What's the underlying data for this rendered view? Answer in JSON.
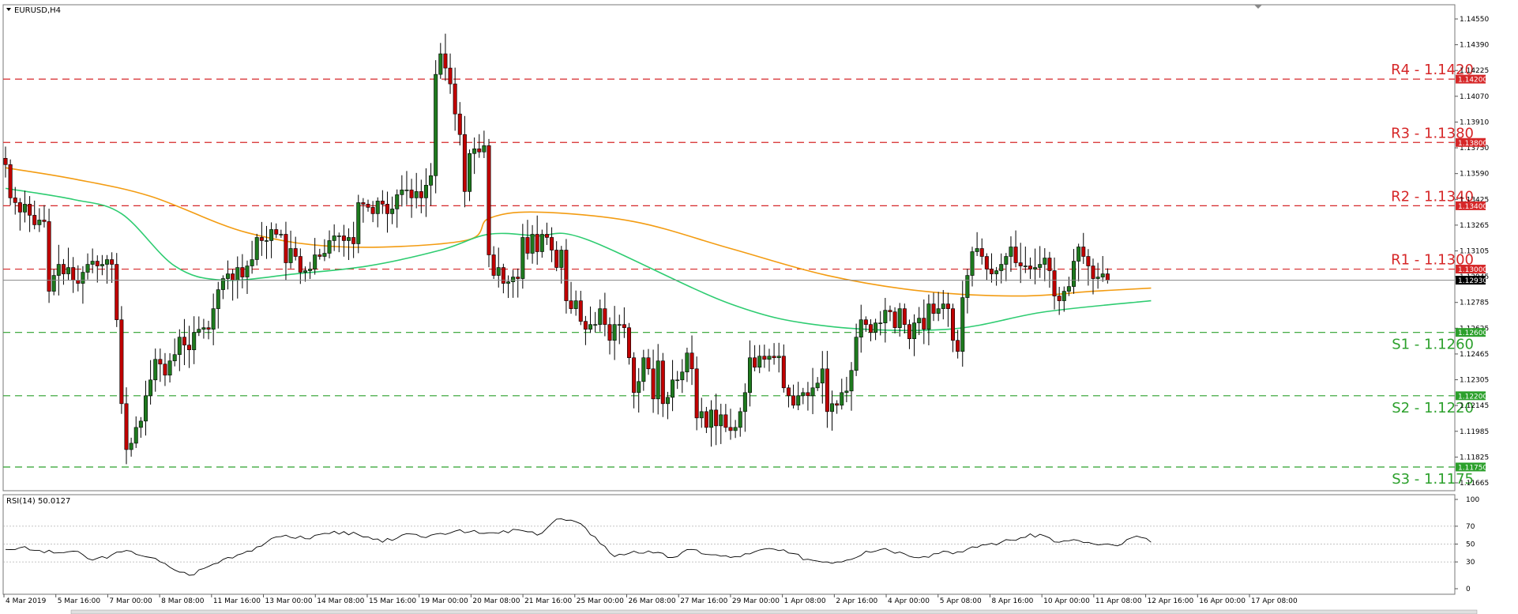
{
  "symbol_label": "EURUSD,H4",
  "rsi_label": "RSI(14) 50.0127",
  "colors": {
    "bull": "#1e7a1e",
    "bear": "#c00000",
    "ma_fast": "#f39c12",
    "ma_slow": "#2ecc71",
    "resistance": "#d62728",
    "support": "#2ca02c",
    "current": "#000000"
  },
  "chart_data": {
    "type": "candlestick",
    "y_ticks": [
      "1.14550",
      "1.14390",
      "1.14225",
      "1.14070",
      "1.13910",
      "1.13750",
      "1.13590",
      "1.13425",
      "1.13265",
      "1.13105",
      "1.12945",
      "1.12785",
      "1.12625",
      "1.12465",
      "1.12305",
      "1.12145",
      "1.11985",
      "1.11825",
      "1.11665"
    ],
    "ylim": [
      1.1165,
      1.1458
    ],
    "x_ticks": [
      "4 Mar 2019",
      "5 Mar 16:00",
      "7 Mar 00:00",
      "8 Mar 08:00",
      "11 Mar 16:00",
      "13 Mar 00:00",
      "14 Mar 08:00",
      "15 Mar 16:00",
      "19 Mar 00:00",
      "20 Mar 08:00",
      "21 Mar 16:00",
      "25 Mar 00:00",
      "26 Mar 08:00",
      "27 Mar 16:00",
      "29 Mar 00:00",
      "1 Apr 08:00",
      "2 Apr 16:00",
      "4 Apr 00:00",
      "5 Apr 08:00",
      "8 Apr 16:00",
      "10 Apr 00:00",
      "11 Apr 08:00",
      "12 Apr 16:00",
      "16 Apr 00:00",
      "17 Apr 08:00"
    ],
    "current_price": 1.1293,
    "current_price_label": "1.12930",
    "levels": [
      {
        "label": "R4 - 1.1420",
        "value": 1.142,
        "tag": "1.14200",
        "kind": "resistance"
      },
      {
        "label": "R3 - 1.1380",
        "value": 1.138,
        "tag": "1.13800",
        "kind": "resistance"
      },
      {
        "label": "R2 - 1.1340",
        "value": 1.134,
        "tag": "1.13400",
        "kind": "resistance"
      },
      {
        "label": "R1 - 1.1300",
        "value": 1.13,
        "tag": "1.13000",
        "kind": "resistance"
      },
      {
        "label": "S1 - 1.1260",
        "value": 1.126,
        "tag": "1.12600",
        "kind": "support"
      },
      {
        "label": "S2 - 1.1220",
        "value": 1.122,
        "tag": "1.12200",
        "kind": "support"
      },
      {
        "label": "S3 - 1.1175",
        "value": 1.1175,
        "tag": "1.11750",
        "kind": "support"
      }
    ],
    "close": [
      1.1366,
      1.1345,
      1.1342,
      1.1336,
      1.1341,
      1.1334,
      1.1328,
      1.1331,
      1.133,
      1.1286,
      1.1296,
      1.1303,
      1.1297,
      1.1301,
      1.1293,
      1.1291,
      1.1298,
      1.1303,
      1.1305,
      1.1302,
      1.1303,
      1.1306,
      1.1303,
      1.1268,
      1.1215,
      1.1186,
      1.119,
      1.12,
      1.1204,
      1.122,
      1.123,
      1.1243,
      1.124,
      1.1233,
      1.1242,
      1.1246,
      1.1257,
      1.1252,
      1.1249,
      1.126,
      1.1262,
      1.1263,
      1.1262,
      1.1275,
      1.1287,
      1.1294,
      1.1297,
      1.1293,
      1.1301,
      1.1295,
      1.1302,
      1.1306,
      1.132,
      1.1318,
      1.1318,
      1.1325,
      1.1322,
      1.1322,
      1.1304,
      1.1313,
      1.1308,
      1.1298,
      1.1299,
      1.13,
      1.1309,
      1.1308,
      1.131,
      1.1318,
      1.1321,
      1.1321,
      1.1318,
      1.132,
      1.1316,
      1.1342,
      1.1341,
      1.1339,
      1.1335,
      1.1343,
      1.1341,
      1.1335,
      1.1338,
      1.1347,
      1.135,
      1.135,
      1.1345,
      1.1349,
      1.1345,
      1.1353,
      1.1359,
      1.1423,
      1.1436,
      1.1427,
      1.1417,
      1.1398,
      1.1385,
      1.1349,
      1.1373,
      1.1376,
      1.1374,
      1.1378,
      1.1309,
      1.1296,
      1.1301,
      1.1291,
      1.1292,
      1.1295,
      1.1294,
      1.132,
      1.131,
      1.1322,
      1.1311,
      1.1322,
      1.132,
      1.1312,
      1.1301,
      1.1312,
      1.128,
      1.1275,
      1.128,
      1.1267,
      1.1262,
      1.1265,
      1.1265,
      1.1275,
      1.1265,
      1.1255,
      1.1265,
      1.1265,
      1.1263,
      1.1244,
      1.1222,
      1.1229,
      1.1244,
      1.1237,
      1.1218,
      1.1242,
      1.1215,
      1.1219,
      1.123,
      1.123,
      1.1235,
      1.1247,
      1.1237,
      1.1206,
      1.121,
      1.12,
      1.1211,
      1.1201,
      1.1208,
      1.12,
      1.1198,
      1.12,
      1.121,
      1.1222,
      1.1244,
      1.1238,
      1.1245,
      1.1243,
      1.1245,
      1.1244,
      1.1245,
      1.1225,
      1.122,
      1.1214,
      1.122,
      1.1222,
      1.122,
      1.1225,
      1.1228,
      1.1237,
      1.121,
      1.1215,
      1.1214,
      1.1222,
      1.1223,
      1.1236,
      1.1257,
      1.1268,
      1.1265,
      1.126,
      1.1266,
      1.1266,
      1.1274,
      1.1273,
      1.1263,
      1.1275,
      1.1265,
      1.1256,
      1.1266,
      1.1269,
      1.1262,
      1.1278,
      1.1272,
      1.1275,
      1.1278,
      1.1275,
      1.1255,
      1.1248,
      1.1282,
      1.1296,
      1.1311,
      1.1313,
      1.1308,
      1.13,
      1.1297,
      1.1299,
      1.1303,
      1.1308,
      1.1314,
      1.1304,
      1.1302,
      1.1302,
      1.13,
      1.1301,
      1.1303,
      1.1307,
      1.1299,
      1.1283,
      1.128,
      1.1286,
      1.1289,
      1.1305,
      1.1314,
      1.1308,
      1.1302,
      1.1294,
      1.1295,
      1.1297,
      1.1293
    ],
    "ma_fast": {
      "x": [
        0,
        14,
        30,
        50,
        70,
        95,
        100,
        110,
        130,
        150,
        170,
        190,
        210,
        225,
        237
      ],
      "y": [
        1.1364,
        1.1357,
        1.1346,
        1.1323,
        1.1314,
        1.1318,
        1.1332,
        1.1336,
        1.133,
        1.1313,
        1.1296,
        1.1286,
        1.1283,
        1.1286,
        1.1288
      ]
    },
    "ma_slow": {
      "x": [
        0,
        14,
        24,
        35,
        45,
        60,
        75,
        90,
        100,
        110,
        120,
        150,
        170,
        195,
        215,
        237
      ],
      "y": [
        1.1351,
        1.1344,
        1.1335,
        1.1302,
        1.1293,
        1.1297,
        1.1302,
        1.1312,
        1.1322,
        1.1321,
        1.1319,
        1.1278,
        1.1264,
        1.1262,
        1.1273,
        1.128
      ]
    },
    "rsi": {
      "ylim": [
        0,
        100
      ],
      "y_ticks": [
        "100",
        "70",
        "50",
        "30",
        "0"
      ],
      "levels": [
        70,
        50,
        30
      ],
      "x": [
        0,
        3,
        6,
        10,
        14,
        18,
        22,
        26,
        30,
        34,
        38,
        42,
        46,
        50,
        54,
        58,
        62,
        66,
        70,
        74,
        78,
        82,
        86,
        90,
        94,
        98,
        102,
        106,
        110,
        114,
        118,
        122,
        126,
        130,
        134,
        138,
        142,
        146,
        150,
        154,
        158,
        162,
        166,
        170,
        174,
        178,
        182,
        186,
        190,
        194,
        198,
        202,
        206,
        210,
        214,
        218,
        222,
        226,
        230,
        234,
        237
      ],
      "values": [
        44,
        46,
        43,
        40,
        42,
        32,
        38,
        42,
        35,
        24,
        15,
        25,
        35,
        42,
        52,
        60,
        56,
        62,
        64,
        58,
        52,
        60,
        58,
        62,
        66,
        62,
        62,
        66,
        60,
        78,
        75,
        58,
        36,
        42,
        40,
        35,
        44,
        38,
        35,
        39,
        45,
        40,
        33,
        30,
        32,
        42,
        45,
        39,
        36,
        42,
        41,
        49,
        52,
        57,
        61,
        52,
        54,
        49,
        48,
        59,
        52
      ]
    }
  }
}
